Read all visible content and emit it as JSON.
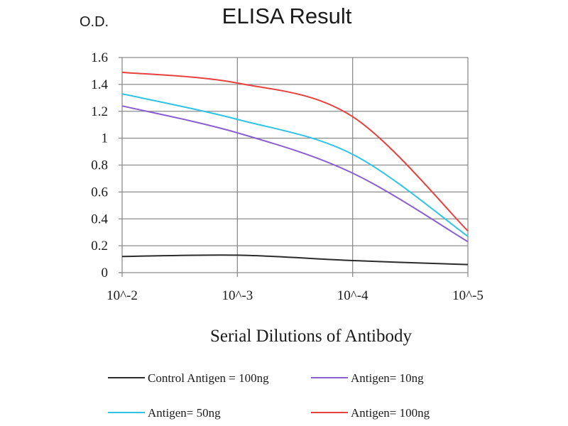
{
  "chart_data": {
    "type": "line",
    "title": "ELISA Result",
    "ylabel": "O.D.",
    "xlabel": "Serial Dilutions of Antibody",
    "categories": [
      "10^-2",
      "10^-3",
      "10^-4",
      "10^-5"
    ],
    "ylim": [
      0,
      1.6
    ],
    "yticks": [
      "0",
      "0.2",
      "0.4",
      "0.6",
      "0.8",
      "1",
      "1.2",
      "1.4",
      "1.6"
    ],
    "grid": true,
    "legend_position": "bottom",
    "series": [
      {
        "name": "Control Antigen = 100ng",
        "color": "#2b2b2b",
        "values": [
          0.12,
          0.13,
          0.09,
          0.06
        ]
      },
      {
        "name": "Antigen= 10ng",
        "color": "#8a5fd3",
        "values": [
          1.24,
          1.04,
          0.74,
          0.23
        ]
      },
      {
        "name": "Antigen= 50ng",
        "color": "#2ec4e6",
        "values": [
          1.33,
          1.14,
          0.88,
          0.27
        ]
      },
      {
        "name": "Antigen= 100ng",
        "color": "#e8403f",
        "values": [
          1.49,
          1.41,
          1.16,
          0.31
        ]
      }
    ]
  }
}
